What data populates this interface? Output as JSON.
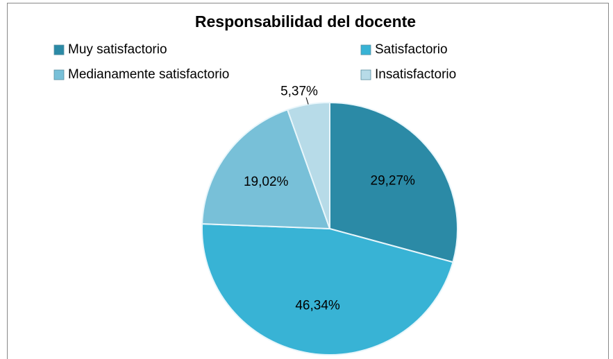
{
  "chart_data": {
    "type": "pie",
    "title": "Responsabilidad del docente",
    "categories": [
      "Muy satisfactorio",
      "Satisfactorio",
      "Medianamente satisfactorio",
      "Insatisfactorio"
    ],
    "values": [
      29.27,
      46.34,
      19.02,
      5.37
    ],
    "value_labels": [
      "29,27%",
      "46,34%",
      "19,02%",
      "5,37%"
    ],
    "colors": [
      "#2b8aa6",
      "#38b3d5",
      "#78c0d8",
      "#b7dbe8"
    ],
    "legend": "top"
  }
}
